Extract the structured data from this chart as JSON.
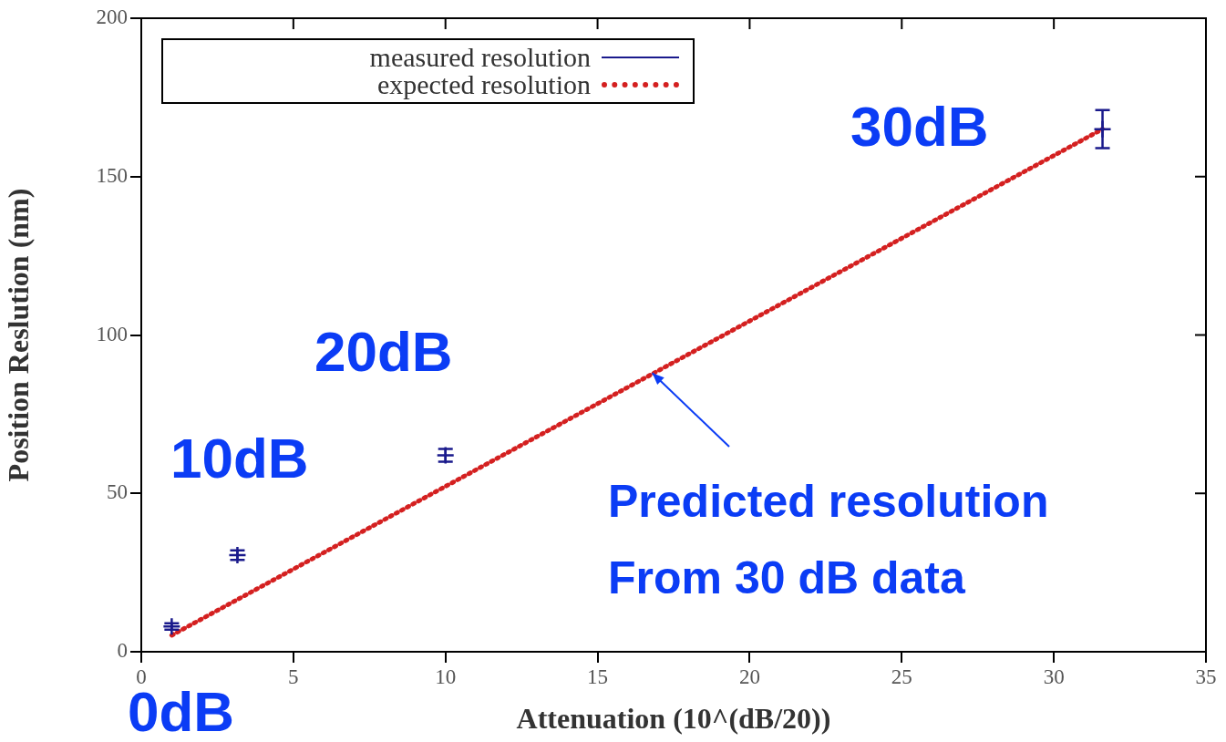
{
  "chart_data": {
    "type": "scatter",
    "xlabel": "Attenuation (10^(dB/20))",
    "ylabel": "Position Reslution (nm)",
    "xlim": [
      0,
      35
    ],
    "xticks": [
      0,
      5,
      10,
      15,
      20,
      25,
      30,
      35
    ],
    "ylim": [
      0,
      200
    ],
    "yticks": [
      0,
      50,
      100,
      150,
      200
    ],
    "grid": false,
    "legend": "top left",
    "series": [
      {
        "name": "measured resolution",
        "type": "scatter",
        "color": "#1a1a8c",
        "marker": "cross",
        "x": [
          1,
          3.16,
          10,
          31.6
        ],
        "values": [
          8,
          30.5,
          62,
          165
        ],
        "errors": [
          1,
          1.5,
          2,
          6
        ]
      },
      {
        "name": "expected resolution",
        "type": "line",
        "color": "#d42020",
        "line_style": "dotted",
        "marker": "none",
        "x": [
          1,
          31.6
        ],
        "values": [
          5.2,
          165
        ]
      }
    ],
    "annotations": [
      "0dB",
      "10dB",
      "20dB",
      "30dB",
      {
        "text": "Predicted resolution\nFrom 30 dB data",
        "x": 16.8,
        "y": 88
      }
    ]
  }
}
